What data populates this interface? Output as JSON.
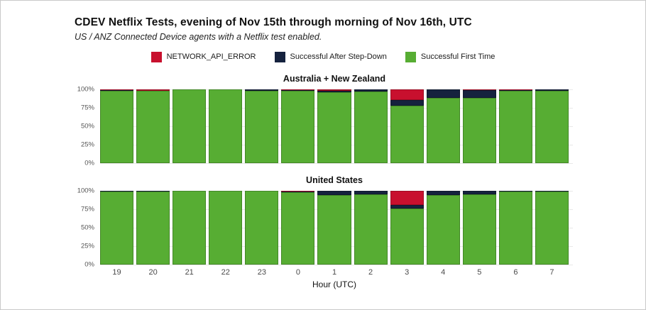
{
  "page": {
    "title": "CDEV Netflix Tests, evening of Nov 15th through morning of Nov 16th, UTC",
    "subtitle": "US / ANZ Connected Device agents with a Netflix test enabled."
  },
  "colors": {
    "error": "#c8102e",
    "stepdown": "#15223e",
    "first_time": "#57ad33",
    "gridline": "#e8e8e8"
  },
  "legend": [
    {
      "label": "NETWORK_API_ERROR",
      "color": "#c8102e"
    },
    {
      "label": "Successful After Step-Down",
      "color": "#15223e"
    },
    {
      "label": "Successful First Time",
      "color": "#57ad33"
    }
  ],
  "axis": {
    "x_title": "Hour (UTC)",
    "x_labels": [
      "19",
      "20",
      "21",
      "22",
      "23",
      "0",
      "1",
      "2",
      "3",
      "4",
      "5",
      "6",
      "7"
    ],
    "y_labels": [
      "100%",
      "75%",
      "50%",
      "25%",
      "0%"
    ]
  },
  "chart_data": [
    {
      "type": "bar",
      "stacked": true,
      "title": "Australia + New Zealand",
      "categories": [
        "19",
        "20",
        "21",
        "22",
        "23",
        "0",
        "1",
        "2",
        "3",
        "4",
        "5",
        "6",
        "7"
      ],
      "series": [
        {
          "name": "NETWORK_API_ERROR",
          "color": "#c8102e",
          "values": [
            1,
            1.5,
            0,
            0,
            0,
            1,
            2,
            0,
            14,
            0,
            1,
            0.5,
            0
          ]
        },
        {
          "name": "Successful After Step-Down",
          "color": "#15223e",
          "values": [
            0.5,
            0.5,
            0,
            0,
            1.5,
            1,
            1.5,
            3,
            8,
            12,
            11,
            1,
            2
          ]
        },
        {
          "name": "Successful First Time",
          "color": "#57ad33",
          "values": [
            98.5,
            98,
            100,
            100,
            98.5,
            98,
            96.5,
            97,
            78,
            88,
            88,
            98.5,
            98
          ]
        }
      ],
      "xlabel": "Hour (UTC)",
      "ylabel": "",
      "ylim": [
        0,
        100
      ],
      "grid": true,
      "units": "%"
    },
    {
      "type": "bar",
      "stacked": true,
      "title": "United States",
      "categories": [
        "19",
        "20",
        "21",
        "22",
        "23",
        "0",
        "1",
        "2",
        "3",
        "4",
        "5",
        "6",
        "7"
      ],
      "series": [
        {
          "name": "NETWORK_API_ERROR",
          "color": "#c8102e",
          "values": [
            0,
            0,
            0,
            0,
            0,
            1,
            0,
            0,
            19,
            0,
            0,
            0,
            0
          ]
        },
        {
          "name": "Successful After Step-Down",
          "color": "#15223e",
          "values": [
            0.5,
            1,
            0,
            0,
            0,
            1,
            6,
            5,
            5,
            6,
            4.5,
            1,
            1
          ]
        },
        {
          "name": "Successful First Time",
          "color": "#57ad33",
          "values": [
            99.5,
            99,
            100,
            100,
            100,
            98,
            94,
            95,
            76,
            94,
            95.5,
            99,
            99
          ]
        }
      ],
      "xlabel": "Hour (UTC)",
      "ylabel": "",
      "ylim": [
        0,
        100
      ],
      "grid": true,
      "units": "%"
    }
  ]
}
